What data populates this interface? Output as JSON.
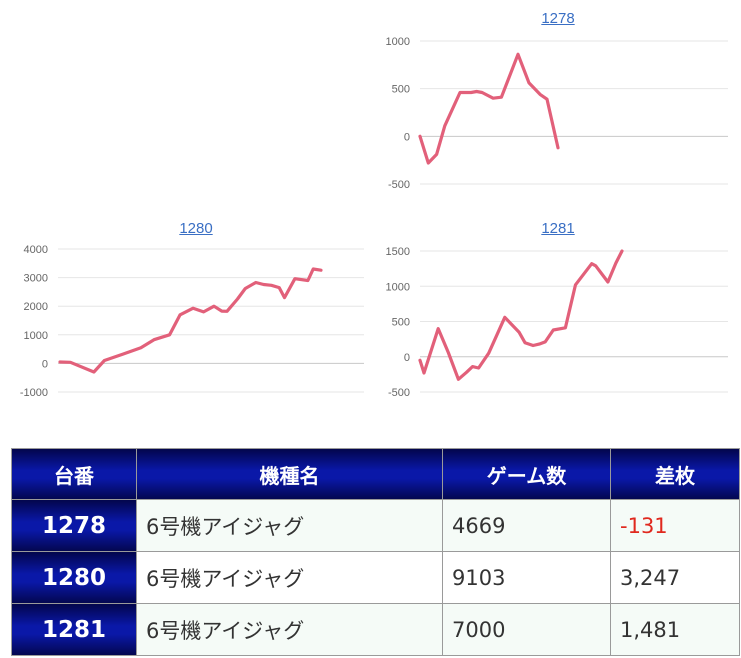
{
  "chart_data": [
    {
      "type": "line",
      "title": "1278",
      "yticks": [
        1000,
        500,
        0,
        -500
      ],
      "ylim": [
        -500,
        1000
      ],
      "color": "#e2607a",
      "x": [
        0,
        0.06,
        0.12,
        0.18,
        0.29,
        0.37,
        0.41,
        0.45,
        0.53,
        0.59,
        0.71,
        0.79,
        0.87,
        0.92,
        1.0
      ],
      "values": [
        0,
        -280,
        -190,
        110,
        460,
        460,
        470,
        460,
        400,
        410,
        860,
        560,
        440,
        390,
        -120
      ]
    },
    {
      "type": "line",
      "title": "1280",
      "yticks": [
        4000,
        3000,
        2000,
        1000,
        0,
        -1000
      ],
      "ylim": [
        -1000,
        4000
      ],
      "color": "#e2607a",
      "x": [
        0,
        0.04,
        0.13,
        0.17,
        0.24,
        0.31,
        0.36,
        0.42,
        0.46,
        0.51,
        0.55,
        0.59,
        0.62,
        0.64,
        0.68,
        0.71,
        0.75,
        0.78,
        0.81,
        0.84,
        0.86,
        0.9,
        0.95,
        0.97,
        1.0
      ],
      "values": [
        50,
        40,
        -300,
        100,
        320,
        550,
        830,
        1000,
        1700,
        1930,
        1800,
        2000,
        1830,
        1820,
        2250,
        2620,
        2830,
        2760,
        2730,
        2650,
        2300,
        2960,
        2900,
        3300,
        3260
      ]
    },
    {
      "type": "line",
      "title": "1281",
      "yticks": [
        1500,
        1000,
        500,
        0,
        -500
      ],
      "ylim": [
        -500,
        1500
      ],
      "color": "#e2607a",
      "x": [
        0,
        0.02,
        0.09,
        0.14,
        0.19,
        0.23,
        0.26,
        0.29,
        0.34,
        0.42,
        0.49,
        0.52,
        0.56,
        0.59,
        0.62,
        0.66,
        0.72,
        0.77,
        0.85,
        0.87,
        0.93,
        0.97,
        1.0
      ],
      "values": [
        -50,
        -230,
        400,
        60,
        -320,
        -220,
        -140,
        -160,
        50,
        560,
        350,
        200,
        160,
        180,
        210,
        380,
        410,
        1020,
        1320,
        1290,
        1060,
        1330,
        1500
      ]
    }
  ],
  "table": {
    "headers": [
      "台番",
      "機種名",
      "ゲーム数",
      "差枚"
    ],
    "rows": [
      {
        "num": "1278",
        "name": "6号機アイジャグ",
        "games": "4669",
        "diff": "-131"
      },
      {
        "num": "1280",
        "name": "6号機アイジャグ",
        "games": "9103",
        "diff": "3,247"
      },
      {
        "num": "1281",
        "name": "6号機アイジャグ",
        "games": "7000",
        "diff": "1,481"
      }
    ]
  }
}
